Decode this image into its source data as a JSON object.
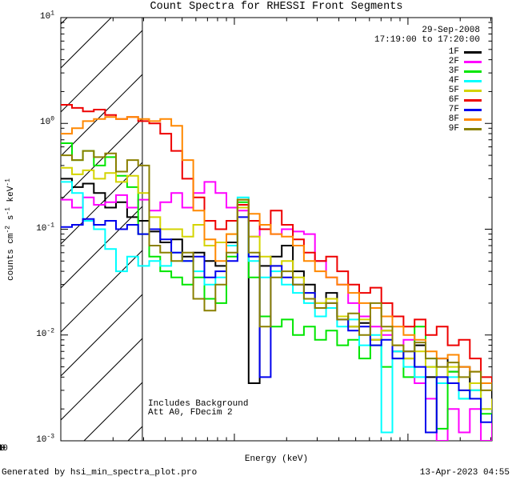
{
  "title": "Count Spectra for RHESSI Front Segments",
  "header": {
    "date": "29-Sep-2008",
    "time_range": "17:19:00 to 17:20:00"
  },
  "annotations": {
    "line1": "Includes Background",
    "line2": "Att A0, FDecim 2"
  },
  "footer": {
    "left": "Generated by hsi_min_spectra_plot.pro",
    "right": "13-Apr-2023 04:55"
  },
  "chart_data": {
    "type": "line",
    "subtype": "stepped-spectrum",
    "title": "Count Spectra for RHESSI Front Segments",
    "xlabel": "Energy (keV)",
    "ylabel": "counts cm^-2 s^-1 keV^-1",
    "ylabel_parts": [
      {
        "t": "counts cm"
      },
      {
        "t": "-2",
        "sup": true
      },
      {
        "t": " s"
      },
      {
        "t": "-1",
        "sup": true
      },
      {
        "t": " keV"
      },
      {
        "t": "-1",
        "sup": true
      }
    ],
    "xscale": "log",
    "yscale": "log",
    "xlim": [
      1,
      305
    ],
    "ylim": [
      0.001,
      10
    ],
    "grid": false,
    "legend_position": "top-right",
    "x_major_ticks": [
      {
        "value": 1,
        "label": "1"
      },
      {
        "value": 10,
        "label": "10"
      },
      {
        "value": 100,
        "label": "100"
      }
    ],
    "x_minor_ticks": [
      2,
      3,
      4,
      5,
      6,
      7,
      8,
      9,
      20,
      30,
      40,
      50,
      60,
      70,
      80,
      90,
      200,
      300
    ],
    "y_major_ticks": [
      {
        "value": 10,
        "exp": 1
      },
      {
        "value": 1,
        "exp": 0
      },
      {
        "value": 0.1,
        "exp": -1
      },
      {
        "value": 0.01,
        "exp": -2
      },
      {
        "value": 0.001,
        "exp": -3
      }
    ],
    "y_minor_ticks": [
      0.002,
      0.003,
      0.004,
      0.005,
      0.006,
      0.007,
      0.008,
      0.009,
      0.02,
      0.03,
      0.04,
      0.05,
      0.06,
      0.07,
      0.08,
      0.09,
      0.2,
      0.3,
      0.4,
      0.5,
      0.6,
      0.7,
      0.8,
      0.9,
      2,
      3,
      4,
      5,
      6,
      7,
      8,
      9
    ],
    "hatch_region": {
      "xmin": 1,
      "xmax": 2.95
    },
    "energies_kev": [
      1.0,
      1.16,
      1.34,
      1.55,
      1.8,
      2.08,
      2.41,
      2.79,
      3.23,
      3.74,
      4.33,
      5.01,
      5.8,
      6.72,
      7.78,
      9.0,
      10.43,
      12.08,
      13.99,
      16.2,
      18.76,
      21.73,
      25.16,
      29.14,
      33.75,
      39.08,
      45.26,
      52.41,
      60.7,
      70.29,
      81.4,
      94.27,
      109.2,
      126.4,
      146.4,
      169.5,
      196.3,
      227.3,
      263.3,
      304.9
    ],
    "series": [
      {
        "name": "1F",
        "color": "#000000",
        "values": [
          0.3,
          0.25,
          0.27,
          0.22,
          0.16,
          0.18,
          0.13,
          0.12,
          0.095,
          0.075,
          0.08,
          0.055,
          0.06,
          0.05,
          0.045,
          0.075,
          0.17,
          0.0035,
          0.045,
          0.055,
          0.07,
          0.04,
          0.03,
          0.02,
          0.025,
          0.015,
          0.012,
          0.013,
          0.009,
          0.011,
          0.007,
          0.006,
          0.008,
          0.004,
          0.006,
          0.0045,
          0.005,
          0.003,
          0.0035,
          0.0025
        ]
      },
      {
        "name": "2F",
        "color": "#ff00ff",
        "values": [
          0.19,
          0.16,
          0.2,
          0.17,
          0.18,
          0.21,
          0.16,
          0.19,
          0.15,
          0.18,
          0.22,
          0.16,
          0.22,
          0.28,
          0.22,
          0.16,
          0.15,
          0.085,
          0.1,
          0.09,
          0.1,
          0.095,
          0.09,
          0.05,
          0.035,
          0.03,
          0.02,
          0.015,
          0.012,
          0.01,
          0.008,
          0.009,
          0.0035,
          0.0025,
          0.001,
          0.002,
          0.0012,
          0.002,
          0.001,
          0.0015
        ]
      },
      {
        "name": "3F",
        "color": "#00e600",
        "values": [
          0.65,
          0.45,
          0.55,
          0.4,
          0.48,
          0.32,
          0.25,
          0.09,
          0.055,
          0.04,
          0.035,
          0.03,
          0.035,
          0.022,
          0.02,
          0.055,
          0.18,
          0.035,
          0.015,
          0.012,
          0.014,
          0.01,
          0.012,
          0.009,
          0.011,
          0.008,
          0.009,
          0.006,
          0.008,
          0.005,
          0.006,
          0.004,
          0.012,
          0.005,
          0.0013,
          0.0045,
          0.0025,
          0.003,
          0.0018,
          0.0015
        ]
      },
      {
        "name": "4F",
        "color": "#00ffff",
        "values": [
          0.28,
          0.22,
          0.12,
          0.1,
          0.065,
          0.04,
          0.055,
          0.045,
          0.05,
          0.045,
          0.06,
          0.05,
          0.04,
          0.03,
          0.035,
          0.07,
          0.2,
          0.05,
          0.035,
          0.04,
          0.03,
          0.025,
          0.02,
          0.015,
          0.018,
          0.012,
          0.014,
          0.008,
          0.01,
          0.0012,
          0.007,
          0.005,
          0.004,
          0.006,
          0.0035,
          0.004,
          0.0025,
          0.003,
          0.002,
          0.0022
        ]
      },
      {
        "name": "5F",
        "color": "#d4d400",
        "values": [
          0.38,
          0.33,
          0.36,
          0.3,
          0.34,
          0.28,
          0.32,
          0.22,
          0.13,
          0.1,
          0.1,
          0.085,
          0.11,
          0.07,
          0.075,
          0.09,
          0.16,
          0.085,
          0.055,
          0.045,
          0.05,
          0.035,
          0.025,
          0.02,
          0.022,
          0.015,
          0.012,
          0.014,
          0.009,
          0.011,
          0.008,
          0.006,
          0.007,
          0.005,
          0.004,
          0.005,
          0.003,
          0.0035,
          0.002,
          0.0025
        ]
      },
      {
        "name": "6F",
        "color": "#ee0000",
        "values": [
          1.5,
          1.4,
          1.3,
          1.35,
          1.2,
          1.1,
          1.15,
          1.05,
          1.0,
          0.8,
          0.55,
          0.3,
          0.2,
          0.12,
          0.1,
          0.12,
          0.17,
          0.12,
          0.1,
          0.15,
          0.11,
          0.08,
          0.06,
          0.05,
          0.055,
          0.04,
          0.03,
          0.025,
          0.028,
          0.02,
          0.015,
          0.012,
          0.014,
          0.01,
          0.012,
          0.008,
          0.009,
          0.006,
          0.004,
          0.003
        ]
      },
      {
        "name": "7F",
        "color": "#0000ee",
        "values": [
          0.105,
          0.11,
          0.125,
          0.11,
          0.12,
          0.1,
          0.11,
          0.09,
          0.1,
          0.08,
          0.06,
          0.05,
          0.055,
          0.035,
          0.04,
          0.05,
          0.13,
          0.055,
          0.004,
          0.045,
          0.035,
          0.03,
          0.025,
          0.018,
          0.02,
          0.014,
          0.011,
          0.012,
          0.008,
          0.009,
          0.006,
          0.007,
          0.005,
          0.0012,
          0.004,
          0.0035,
          0.003,
          0.0025,
          0.0015,
          0.0018
        ]
      },
      {
        "name": "8F",
        "color": "#ff8800",
        "values": [
          0.8,
          0.9,
          1.05,
          1.1,
          1.15,
          1.1,
          1.15,
          1.1,
          1.05,
          1.1,
          0.95,
          0.45,
          0.15,
          0.08,
          0.05,
          0.09,
          0.19,
          0.14,
          0.11,
          0.09,
          0.085,
          0.07,
          0.05,
          0.04,
          0.035,
          0.03,
          0.025,
          0.02,
          0.018,
          0.015,
          0.012,
          0.01,
          0.009,
          0.007,
          0.006,
          0.0065,
          0.005,
          0.0045,
          0.0035,
          0.003
        ]
      },
      {
        "name": "9F",
        "color": "#8a8000",
        "values": [
          0.5,
          0.45,
          0.55,
          0.48,
          0.52,
          0.35,
          0.45,
          0.4,
          0.07,
          0.06,
          0.05,
          0.06,
          0.022,
          0.017,
          0.03,
          0.06,
          0.19,
          0.06,
          0.012,
          0.035,
          0.04,
          0.03,
          0.022,
          0.018,
          0.02,
          0.014,
          0.016,
          0.01,
          0.02,
          0.012,
          0.008,
          0.007,
          0.0085,
          0.006,
          0.005,
          0.0055,
          0.004,
          0.0045,
          0.003,
          0.0035
        ]
      }
    ]
  }
}
